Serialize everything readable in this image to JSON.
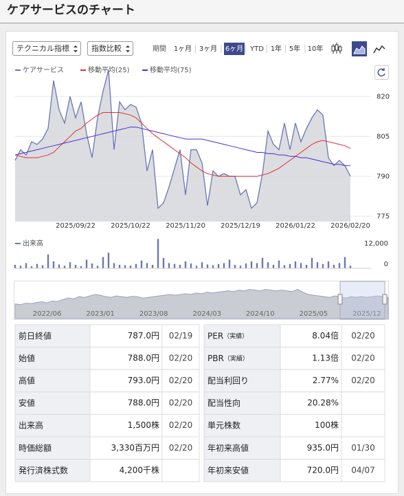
{
  "header": {
    "title": "ケアサービスのチャート"
  },
  "controls": {
    "indicator": "テクニカル指標",
    "compare": "指数比較",
    "period_label": "期間",
    "periods": [
      "1ヶ月",
      "3ヶ月",
      "6ヶ月",
      "YTD",
      "1年",
      "5年",
      "10年"
    ],
    "active_period": 2
  },
  "chart_data": [
    {
      "type": "line",
      "categories": [
        null,
        null,
        null,
        null,
        null,
        null,
        null,
        null,
        null,
        null,
        null,
        "2025/09/22",
        null,
        null,
        null,
        null,
        null,
        null,
        null,
        null,
        null,
        "2025/10/22",
        null,
        null,
        null,
        null,
        null,
        null,
        null,
        null,
        null,
        "2025/11/20",
        null,
        null,
        null,
        null,
        null,
        null,
        null,
        null,
        null,
        "2025/12/19",
        null,
        null,
        null,
        null,
        null,
        null,
        null,
        null,
        null,
        "2026/01/22",
        null,
        null,
        null,
        null,
        null,
        null,
        null,
        null,
        null,
        "2026/02/20"
      ],
      "series": [
        {
          "name": "ケアサービス",
          "color": "#6b76b3",
          "area_color": "#d2d4da",
          "values": [
            796,
            800,
            798,
            803,
            802,
            804,
            808,
            826,
            815,
            810,
            820,
            812,
            818,
            806,
            797,
            812,
            822,
            830,
            800,
            818,
            815,
            817,
            816,
            810,
            792,
            800,
            778,
            780,
            786,
            793,
            800,
            783,
            800,
            800,
            795,
            779,
            792,
            790,
            791,
            790,
            790,
            783,
            785,
            778,
            780,
            791,
            807,
            802,
            800,
            810,
            800,
            810,
            803,
            808,
            812,
            815,
            813,
            797,
            794,
            796,
            794,
            790
          ]
        },
        {
          "name": "移動平均(25)",
          "color": "#e0312b",
          "values": [
            798,
            797.5,
            797,
            797,
            797,
            797.5,
            798,
            799,
            801,
            803,
            805,
            807,
            808,
            810,
            811.5,
            813,
            814,
            814,
            814,
            814,
            813.5,
            813,
            812,
            810,
            808,
            806,
            804.5,
            803,
            801.5,
            800,
            798.5,
            797,
            795,
            793.5,
            792,
            791,
            790.5,
            790,
            790,
            790,
            790,
            790,
            790,
            790,
            790,
            790.5,
            791,
            792,
            793,
            794.5,
            796,
            797.5,
            799,
            800.5,
            802,
            803,
            803.5,
            803,
            802.5,
            802,
            801.5,
            800.5
          ]
        },
        {
          "name": "移動平均(75)",
          "color": "#4b2bd6",
          "values": [
            798,
            798.5,
            799,
            799.5,
            800,
            800.5,
            801,
            801.5,
            802,
            802.5,
            803,
            803.5,
            804,
            804.5,
            805,
            805.5,
            806,
            806.5,
            807,
            807.5,
            808,
            808.5,
            808.5,
            808,
            807.5,
            807,
            806.5,
            806,
            805.5,
            805,
            804.5,
            804,
            804,
            804,
            804,
            803.5,
            803,
            802.5,
            802,
            801.5,
            801,
            800.5,
            800,
            799.5,
            799,
            799,
            798.5,
            798.5,
            798,
            798,
            797.5,
            797.5,
            797,
            797,
            796.5,
            796,
            795.5,
            795,
            794.5,
            794.5,
            794,
            794
          ]
        }
      ],
      "ylim": [
        773,
        833
      ],
      "yticks": [
        775,
        790,
        805,
        820
      ],
      "grid": true
    },
    {
      "type": "bar",
      "series": [
        {
          "name": "出来高",
          "color": "#6b76b3",
          "values": [
            2000,
            1500,
            3000,
            1200,
            2500,
            1800,
            8000,
            4000,
            2200,
            1500,
            3500,
            2000,
            1200,
            5000,
            2800,
            1500,
            6500,
            9000,
            3000,
            2000,
            1800,
            1500,
            2500,
            4500,
            3000,
            2000,
            17000,
            6000,
            3000,
            2500,
            2000,
            4000,
            2800,
            1500,
            3500,
            2200,
            1800,
            2500,
            3000,
            5000,
            2000,
            1500,
            2800,
            4000,
            3000,
            6000,
            3500,
            2000,
            4500,
            1800,
            2500,
            4000,
            3000,
            2000,
            6000,
            3500,
            2500,
            4000,
            2000,
            3000,
            6500,
            1500
          ]
        }
      ],
      "ylim": [
        0,
        17500
      ],
      "yticks": [
        0,
        {
          "value": 12000,
          "label": "12,000"
        }
      ]
    },
    {
      "type": "area",
      "categories": [
        null,
        null,
        null,
        null,
        null,
        null,
        "2022/06",
        null,
        null,
        null,
        null,
        null,
        null,
        null,
        null,
        null,
        "2023/01",
        null,
        null,
        null,
        null,
        null,
        null,
        null,
        null,
        null,
        "2023/08",
        null,
        null,
        null,
        null,
        null,
        null,
        null,
        null,
        null,
        "2024/03",
        null,
        null,
        null,
        null,
        null,
        null,
        null,
        null,
        null,
        "2024/10",
        null,
        null,
        null,
        null,
        null,
        null,
        null,
        null,
        null,
        "2025/05",
        null,
        null,
        null,
        null,
        null,
        null,
        null,
        null,
        null,
        "2025/12",
        null,
        null,
        null,
        null
      ],
      "values": [
        700,
        690,
        710,
        705,
        720,
        730,
        715,
        740,
        735,
        760,
        780,
        770,
        800,
        790,
        810,
        830,
        820,
        800,
        790,
        810,
        800,
        790,
        805,
        800,
        780,
        790,
        800,
        810,
        820,
        830,
        820,
        830,
        840,
        830,
        850,
        840,
        860,
        850,
        860,
        870,
        880,
        870,
        890,
        880,
        900,
        890,
        880,
        900,
        890,
        880,
        890,
        880,
        870,
        900,
        860,
        830,
        820,
        810,
        800,
        790,
        810,
        800,
        780,
        800,
        790,
        800,
        790,
        800,
        810,
        800,
        790
      ],
      "ylim": [
        500,
        1000
      ],
      "color": "#9aa0bf"
    }
  ],
  "table": {
    "left": [
      {
        "label": "前日終値",
        "value": "787.0円",
        "date": "02/19"
      },
      {
        "label": "始値",
        "value": "788.0円",
        "date": "02/20"
      },
      {
        "label": "高値",
        "value": "793.0円",
        "date": "02/20"
      },
      {
        "label": "安値",
        "value": "788.0円",
        "date": "02/20"
      },
      {
        "label": "出来高",
        "value": "1,500株",
        "date": "02/20"
      },
      {
        "label": "時価総額",
        "value": "3,330百万円",
        "date": "02/20"
      },
      {
        "label": "発行済株式数",
        "value": "4,200千株"
      }
    ],
    "right": [
      {
        "label": "PER",
        "note": "（実績）",
        "value": "8.04倍",
        "date": "02/20"
      },
      {
        "label": "PBR",
        "note": "（実績）",
        "value": "1.13倍",
        "date": "02/20"
      },
      {
        "label": "配当利回り",
        "value": "2.77%",
        "date": "02/20"
      },
      {
        "label": "配当性向",
        "value": "20.28%"
      },
      {
        "label": "単元株数",
        "value": "100株"
      },
      {
        "label": "年初来高値",
        "value": "935.0円",
        "date": "01/30"
      },
      {
        "label": "年初来安値",
        "value": "720.0円",
        "date": "04/07"
      }
    ]
  }
}
